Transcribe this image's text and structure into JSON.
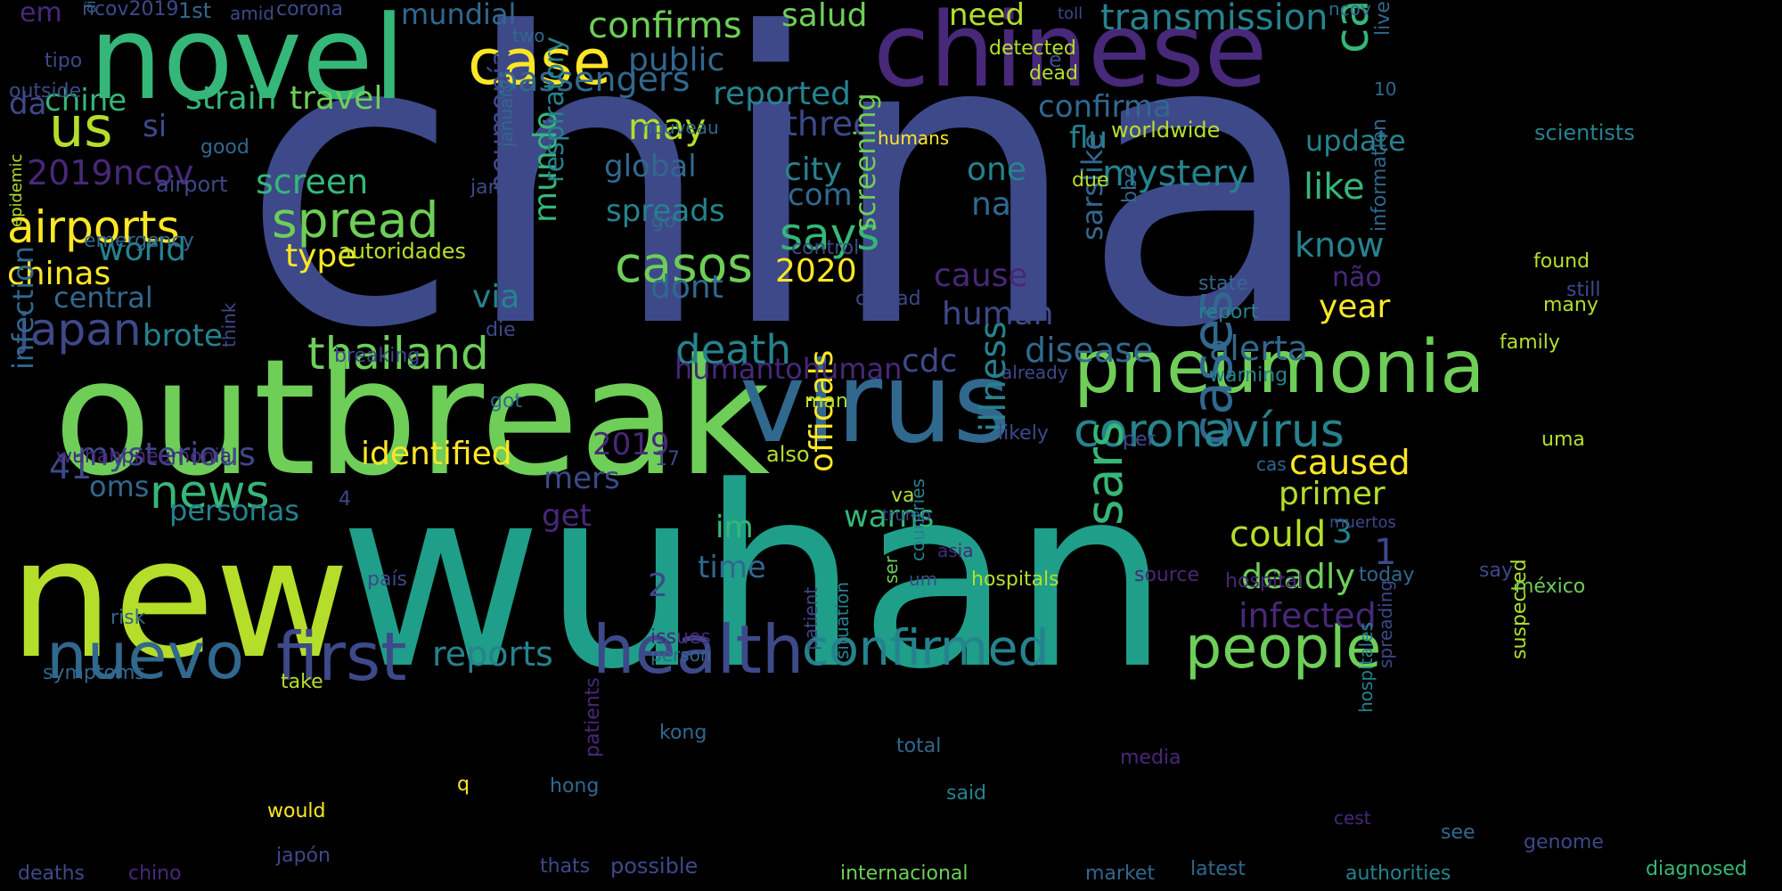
{
  "colors": {
    "background": "#000000",
    "palette": [
      "#fde725",
      "#b5de2b",
      "#6ece58",
      "#35b779",
      "#1f9e89",
      "#26828e",
      "#31688e",
      "#3e4989",
      "#482878",
      "#440154"
    ]
  },
  "words": [
    {
      "text": "china",
      "color": "#3e4989"
    },
    {
      "text": "wuhan",
      "color": "#1f9e89"
    },
    {
      "text": "outbreak",
      "color": "#6ece58"
    },
    {
      "text": "new",
      "color": "#b5de2b"
    },
    {
      "text": "novel",
      "color": "#35b779"
    },
    {
      "text": "chinese",
      "color": "#482878"
    },
    {
      "text": "virus",
      "color": "#31688e"
    },
    {
      "text": "pneumonia",
      "color": "#6ece58"
    },
    {
      "text": "health",
      "color": "#3e4989"
    },
    {
      "text": "first",
      "color": "#3e4989"
    },
    {
      "text": "nuevo",
      "color": "#31688e"
    },
    {
      "text": "people",
      "color": "#6ece58"
    },
    {
      "text": "confirmed",
      "color": "#26828e"
    },
    {
      "text": "case",
      "color": "#fde725"
    },
    {
      "text": "cases",
      "color": "#31688e"
    },
    {
      "text": "coronavírus",
      "color": "#26828e"
    },
    {
      "text": "us",
      "color": "#b5de2b"
    },
    {
      "text": "airports",
      "color": "#fde725"
    },
    {
      "text": "spread",
      "color": "#6ece58"
    },
    {
      "text": "casos",
      "color": "#6ece58"
    },
    {
      "text": "news",
      "color": "#35b779"
    },
    {
      "text": "japan",
      "color": "#3e4989"
    },
    {
      "text": "thailand",
      "color": "#6ece58"
    },
    {
      "text": "sars",
      "color": "#35b779"
    },
    {
      "text": "says",
      "color": "#35b779"
    },
    {
      "text": "death",
      "color": "#26828e"
    },
    {
      "text": "caso",
      "color": "#35b779"
    },
    {
      "text": "confirms",
      "color": "#6ece58"
    },
    {
      "text": "transmission",
      "color": "#26828e"
    },
    {
      "text": "passengers",
      "color": "#31688e"
    },
    {
      "text": "reported",
      "color": "#26828e"
    },
    {
      "text": "mystery",
      "color": "#26828e"
    },
    {
      "text": "disease",
      "color": "#31688e"
    },
    {
      "text": "alerta",
      "color": "#31688e"
    },
    {
      "text": "reports",
      "color": "#26828e"
    },
    {
      "text": "identified",
      "color": "#fde725"
    },
    {
      "text": "chinas",
      "color": "#fde725"
    },
    {
      "text": "strain",
      "color": "#35b779"
    },
    {
      "text": "travel",
      "color": "#6ece58"
    },
    {
      "text": "screen",
      "color": "#35b779"
    },
    {
      "text": "world",
      "color": "#26828e"
    },
    {
      "text": "type",
      "color": "#fde725"
    },
    {
      "text": "mysterious",
      "color": "#3e4989"
    },
    {
      "text": "infection",
      "color": "#31688e"
    },
    {
      "text": "officials",
      "color": "#fde725"
    },
    {
      "text": "illness",
      "color": "#26828e"
    },
    {
      "text": "caused",
      "color": "#fde725"
    },
    {
      "text": "primer",
      "color": "#b5de2b"
    },
    {
      "text": "could",
      "color": "#b5de2b"
    },
    {
      "text": "deadly",
      "color": "#6ece58"
    },
    {
      "text": "infected",
      "color": "#482878"
    },
    {
      "text": "like",
      "color": "#35b779"
    },
    {
      "text": "know",
      "color": "#26828e"
    },
    {
      "text": "year",
      "color": "#fde725"
    },
    {
      "text": "warns",
      "color": "#35b779"
    },
    {
      "text": "flu",
      "color": "#26828e"
    },
    {
      "text": "city",
      "color": "#26828e"
    },
    {
      "text": "one",
      "color": "#26828e"
    },
    {
      "text": "three",
      "color": "#3e4989"
    },
    {
      "text": "may",
      "color": "#b5de2b"
    },
    {
      "text": "global",
      "color": "#31688e"
    },
    {
      "text": "spreads",
      "color": "#26828e"
    },
    {
      "text": "2020",
      "color": "#fde725"
    },
    {
      "text": "screening",
      "color": "#6ece58"
    },
    {
      "text": "dont",
      "color": "#31688e"
    },
    {
      "text": "via",
      "color": "#26828e"
    },
    {
      "text": "mundo",
      "color": "#35b779"
    },
    {
      "text": "neumonía",
      "color": "#3e4989"
    },
    {
      "text": "respiratory",
      "color": "#26828e"
    },
    {
      "text": "brote",
      "color": "#26828e"
    },
    {
      "text": "oms",
      "color": "#31688e"
    },
    {
      "text": "personas",
      "color": "#26828e"
    },
    {
      "text": "central",
      "color": "#31688e"
    },
    {
      "text": "2019ncov",
      "color": "#482878"
    },
    {
      "text": "chine",
      "color": "#35b779"
    },
    {
      "text": "si",
      "color": "#3e4989"
    },
    {
      "text": "da",
      "color": "#3e4989"
    },
    {
      "text": "mundial",
      "color": "#31688e"
    },
    {
      "text": "salud",
      "color": "#6ece58"
    },
    {
      "text": "need",
      "color": "#b5de2b"
    },
    {
      "text": "public",
      "color": "#31688e"
    },
    {
      "text": "confirma",
      "color": "#31688e"
    },
    {
      "text": "update",
      "color": "#26828e"
    },
    {
      "text": "cause",
      "color": "#482878"
    },
    {
      "text": "human",
      "color": "#3e4989"
    },
    {
      "text": "humantohuman",
      "color": "#482878"
    },
    {
      "text": "cdc",
      "color": "#3e4989"
    },
    {
      "text": "na",
      "color": "#31688e"
    },
    {
      "text": "com",
      "color": "#31688e"
    },
    {
      "text": "sarslike",
      "color": "#31688e"
    },
    {
      "text": "não",
      "color": "#482878"
    },
    {
      "text": "2019",
      "color": "#482878"
    },
    {
      "text": "41",
      "color": "#3e4989"
    },
    {
      "text": "mers",
      "color": "#3e4989"
    },
    {
      "text": "get",
      "color": "#482878"
    },
    {
      "text": "im",
      "color": "#35b779"
    },
    {
      "text": "time",
      "color": "#31688e"
    },
    {
      "text": "2",
      "color": "#3e4989"
    },
    {
      "text": "3",
      "color": "#26828e"
    },
    {
      "text": "1",
      "color": "#3e4989"
    },
    {
      "text": "em",
      "color": "#482878"
    },
    {
      "text": "ncov2019",
      "color": "#3e4989"
    },
    {
      "text": "1st",
      "color": "#31688e"
    },
    {
      "text": "amid",
      "color": "#3e4989"
    },
    {
      "text": "corona",
      "color": "#3e4989"
    },
    {
      "text": "two",
      "color": "#31688e"
    },
    {
      "text": "toll",
      "color": "#3e4989"
    },
    {
      "text": "ncov",
      "color": "#31688e"
    },
    {
      "text": "live",
      "color": "#31688e"
    },
    {
      "text": "10",
      "color": "#31688e"
    },
    {
      "text": "é",
      "color": "#3e4989"
    },
    {
      "text": "di",
      "color": "#31688e"
    },
    {
      "text": "tipo",
      "color": "#3e4989"
    },
    {
      "text": "outside",
      "color": "#3e4989"
    },
    {
      "text": "detected",
      "color": "#b5de2b"
    },
    {
      "text": "dead",
      "color": "#b5de2b"
    },
    {
      "text": "nouveau",
      "color": "#31688e"
    },
    {
      "text": "humans",
      "color": "#fde725"
    },
    {
      "text": "worldwide",
      "color": "#b5de2b"
    },
    {
      "text": "scientists",
      "color": "#26828e"
    },
    {
      "text": "good",
      "color": "#31688e"
    },
    {
      "text": "airport",
      "color": "#3e4989"
    },
    {
      "text": "epidemic",
      "color": "#b5de2b"
    },
    {
      "text": "emergency",
      "color": "#31688e"
    },
    {
      "text": "jan",
      "color": "#3e4989"
    },
    {
      "text": "january",
      "color": "#31688e"
    },
    {
      "text": "autoridades",
      "color": "#b5de2b"
    },
    {
      "text": "go",
      "color": "#31688e"
    },
    {
      "text": "control",
      "color": "#3e4989"
    },
    {
      "text": "ciudad",
      "color": "#3e4989"
    },
    {
      "text": "due",
      "color": "#b5de2b"
    },
    {
      "text": "bbc",
      "color": "#31688e"
    },
    {
      "text": "information",
      "color": "#31688e"
    },
    {
      "text": "state",
      "color": "#31688e"
    },
    {
      "text": "report",
      "color": "#26828e"
    },
    {
      "text": "found",
      "color": "#b5de2b"
    },
    {
      "text": "still",
      "color": "#3e4989"
    },
    {
      "text": "many",
      "color": "#b5de2b"
    },
    {
      "text": "family",
      "color": "#b5de2b"
    },
    {
      "text": "die",
      "color": "#3e4989"
    },
    {
      "text": "breaking",
      "color": "#3e4989"
    },
    {
      "text": "think",
      "color": "#3e4989"
    },
    {
      "text": "got",
      "color": "#31688e"
    },
    {
      "text": "already",
      "color": "#3e4989"
    },
    {
      "text": "warning",
      "color": "#26828e"
    },
    {
      "text": "man",
      "color": "#b5de2b"
    },
    {
      "text": "likely",
      "color": "#3e4989"
    },
    {
      "text": "per",
      "color": "#3e4989"
    },
    {
      "text": "cas",
      "color": "#31688e"
    },
    {
      "text": "uma",
      "color": "#b5de2b"
    },
    {
      "text": "also",
      "color": "#b5de2b"
    },
    {
      "text": "17",
      "color": "#3e4989"
    },
    {
      "text": "wuhanpneumonia",
      "color": "#482878"
    },
    {
      "text": "4",
      "color": "#3e4989"
    },
    {
      "text": "va",
      "color": "#b5de2b"
    },
    {
      "text": "trump",
      "color": "#3e4989"
    },
    {
      "text": "asia",
      "color": "#482878"
    },
    {
      "text": "muertos",
      "color": "#3e4989"
    },
    {
      "text": "ser",
      "color": "#6ece58"
    },
    {
      "text": "um",
      "color": "#3e4989"
    },
    {
      "text": "source",
      "color": "#482878"
    },
    {
      "text": "hospital",
      "color": "#482878"
    },
    {
      "text": "hospitals",
      "color": "#b5de2b"
    },
    {
      "text": "país",
      "color": "#3e4989"
    },
    {
      "text": "risk",
      "color": "#31688e"
    },
    {
      "text": "issues",
      "color": "#482878"
    },
    {
      "text": "person",
      "color": "#31688e"
    },
    {
      "text": "symptoms",
      "color": "#31688e"
    },
    {
      "text": "take",
      "color": "#b5de2b"
    },
    {
      "text": "patients",
      "color": "#482878"
    },
    {
      "text": "patient",
      "color": "#3e4989"
    },
    {
      "text": "situation",
      "color": "#26828e"
    },
    {
      "text": "countries",
      "color": "#26828e"
    },
    {
      "text": "kong",
      "color": "#31688e"
    },
    {
      "text": "total",
      "color": "#31688e"
    },
    {
      "text": "hong",
      "color": "#31688e"
    },
    {
      "text": "q",
      "color": "#fde725"
    },
    {
      "text": "said",
      "color": "#26828e"
    },
    {
      "text": "media",
      "color": "#482878"
    },
    {
      "text": "hospitales",
      "color": "#26828e"
    },
    {
      "text": "spreading",
      "color": "#3e4989"
    },
    {
      "text": "suspected",
      "color": "#b5de2b"
    },
    {
      "text": "today",
      "color": "#31688e"
    },
    {
      "text": "say",
      "color": "#3e4989"
    },
    {
      "text": "méxico",
      "color": "#6ece58"
    },
    {
      "text": "would",
      "color": "#fde725"
    },
    {
      "text": "deaths",
      "color": "#3e4989"
    },
    {
      "text": "chino",
      "color": "#482878"
    },
    {
      "text": "japón",
      "color": "#3e4989"
    },
    {
      "text": "thats",
      "color": "#3e4989"
    },
    {
      "text": "possible",
      "color": "#3e4989"
    },
    {
      "text": "internacional",
      "color": "#6ece58"
    },
    {
      "text": "market",
      "color": "#31688e"
    },
    {
      "text": "latest",
      "color": "#31688e"
    },
    {
      "text": "authorities",
      "color": "#26828e"
    },
    {
      "text": "genome",
      "color": "#3e4989"
    },
    {
      "text": "diagnosed",
      "color": "#35b779"
    },
    {
      "text": "see",
      "color": "#31688e"
    },
    {
      "text": "cest",
      "color": "#482878"
    }
  ]
}
